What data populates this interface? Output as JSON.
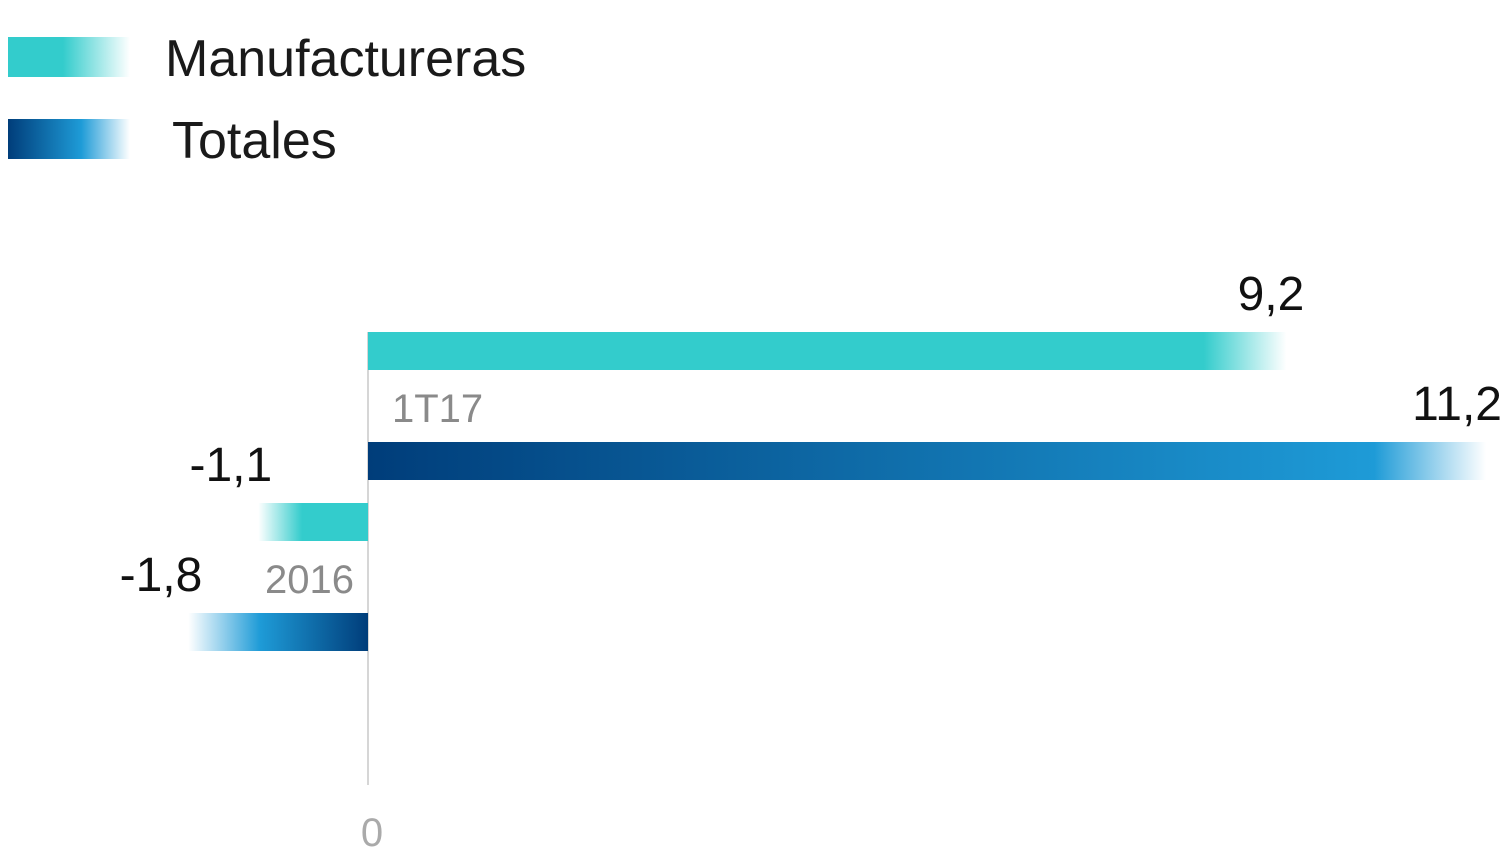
{
  "chart_data": {
    "type": "bar",
    "orientation": "horizontal",
    "categories": [
      "1T17",
      "2016"
    ],
    "series": [
      {
        "name": "Manufactureras",
        "values": [
          9.2,
          -1.1
        ],
        "value_labels": [
          "9,2",
          "-1,1"
        ],
        "color": "#33cccc"
      },
      {
        "name": "Totales",
        "values": [
          11.2,
          -1.8
        ],
        "value_labels": [
          "11,2",
          "-1,8"
        ],
        "color_start": "#003d7a",
        "color_end": "#1e9bd7"
      }
    ],
    "x_ticks": [
      {
        "value": 0,
        "label": "0"
      }
    ],
    "xlim": [
      -2.2,
      11.2
    ],
    "grid": false,
    "legend": "top-left"
  }
}
